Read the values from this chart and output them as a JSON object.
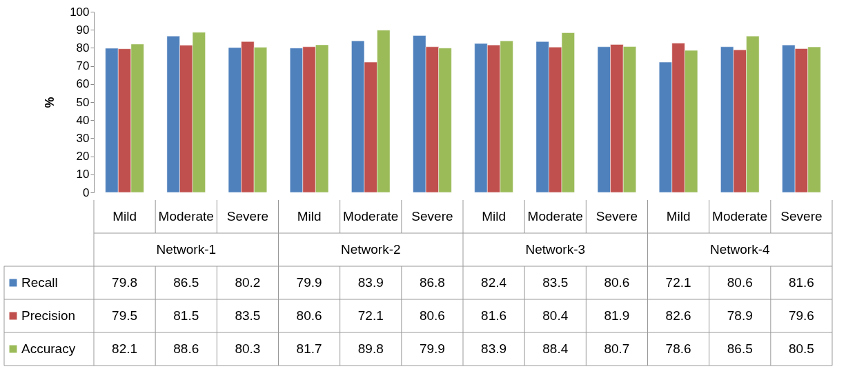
{
  "chart_data": {
    "type": "bar",
    "ylabel": "%",
    "categories": [
      "Mild",
      "Moderate",
      "Severe",
      "Mild",
      "Moderate",
      "Severe",
      "Mild",
      "Moderate",
      "Severe",
      "Mild",
      "Moderate",
      "Severe"
    ],
    "annotations": [
      "Network-1",
      "Network-2",
      "Network-3",
      "Network-4"
    ],
    "series": [
      {
        "name": "Recall",
        "color": "#4f81bd",
        "values": [
          79.8,
          86.5,
          80.2,
          79.9,
          83.9,
          86.8,
          82.4,
          83.5,
          80.6,
          72.1,
          80.6,
          81.6
        ]
      },
      {
        "name": "Precision",
        "color": "#c0504d",
        "values": [
          79.5,
          81.5,
          83.5,
          80.6,
          72.1,
          80.6,
          81.6,
          80.4,
          81.9,
          82.6,
          78.9,
          79.6
        ]
      },
      {
        "name": "Accuracy",
        "color": "#9bbb59",
        "values": [
          82.1,
          88.6,
          80.3,
          81.7,
          89.8,
          79.9,
          83.9,
          88.4,
          80.7,
          78.6,
          86.5,
          80.5
        ]
      }
    ],
    "ylim": [
      0,
      100
    ],
    "yticks": [
      0,
      10,
      20,
      30,
      40,
      50,
      60,
      70,
      80,
      90,
      100
    ],
    "grid": false,
    "legend": "bottom left",
    "data_labels": true
  }
}
